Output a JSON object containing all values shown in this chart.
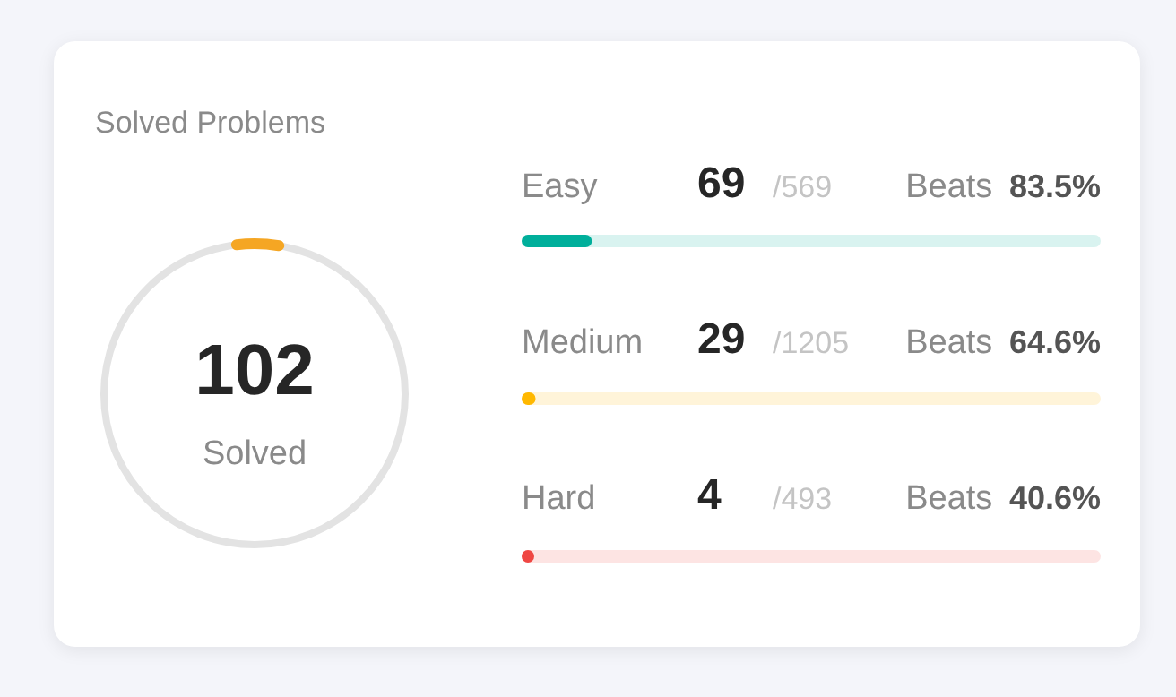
{
  "chart_data": {
    "type": "other",
    "title": "Solved Problems",
    "categories": [
      "Easy",
      "Medium",
      "Hard"
    ],
    "values": [
      69,
      29,
      4
    ],
    "data_labels": true,
    "totals": [
      "/569",
      "/1205",
      "/493"
    ],
    "colors": [
      "#00af9b",
      "#ffb800",
      "#ef4743"
    ],
    "annotations": [
      "102",
      "Solved",
      "Beats 83.5%",
      "Beats 64.6%",
      "Beats 40.6%"
    ]
  }
}
